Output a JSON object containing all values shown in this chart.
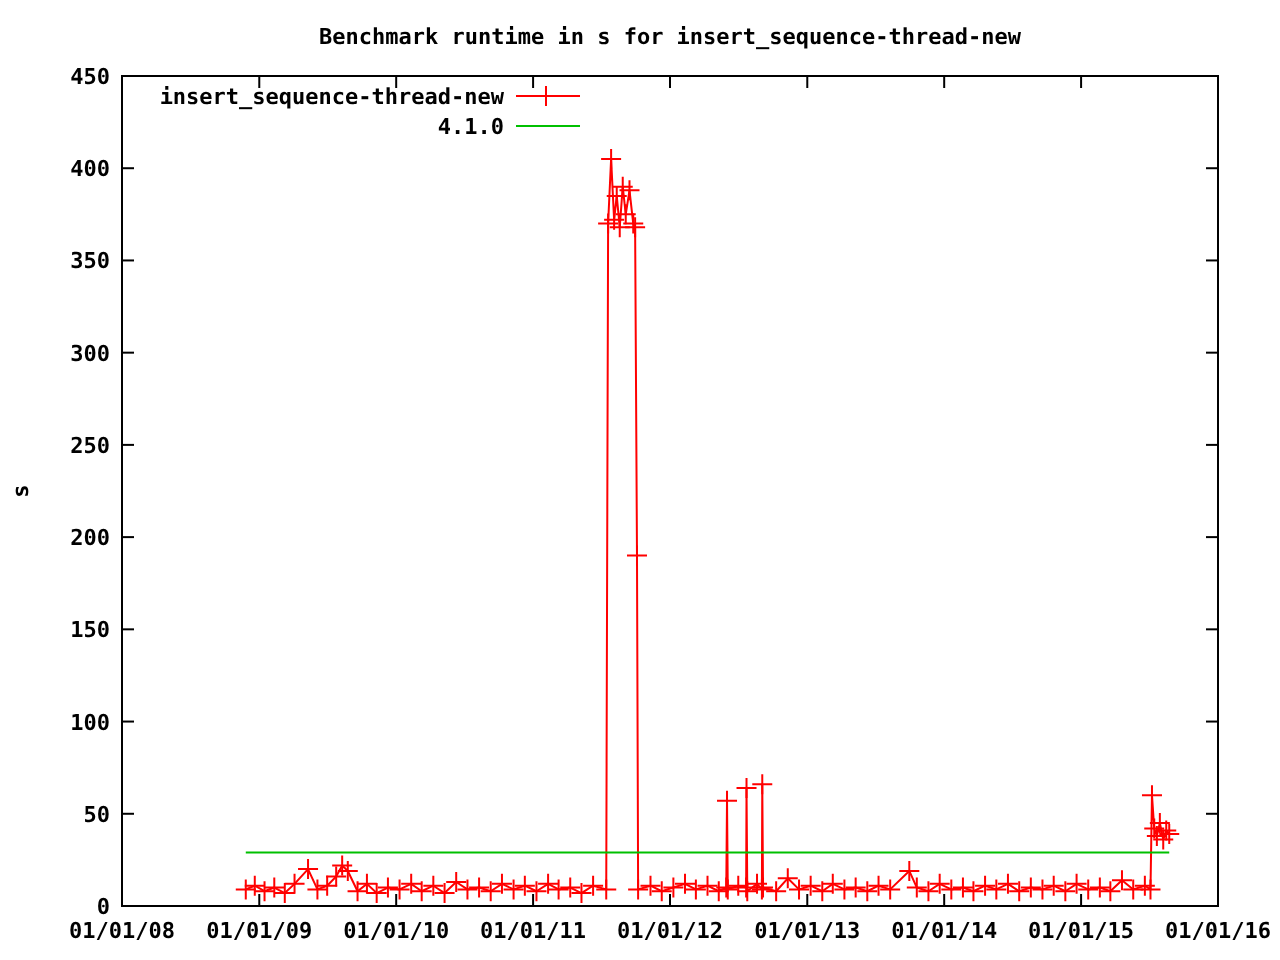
{
  "chart_data": {
    "type": "line",
    "title": "Benchmark runtime in s for insert_sequence-thread-new",
    "ylabel": "s",
    "xlim": [
      "2008-01-01",
      "2016-01-01"
    ],
    "xticks": [
      {
        "value": "2008-01-01",
        "label": "01/01/08"
      },
      {
        "value": "2009-01-01",
        "label": "01/01/09"
      },
      {
        "value": "2010-01-01",
        "label": "01/01/10"
      },
      {
        "value": "2011-01-01",
        "label": "01/01/11"
      },
      {
        "value": "2012-01-01",
        "label": "01/01/12"
      },
      {
        "value": "2013-01-01",
        "label": "01/01/13"
      },
      {
        "value": "2014-01-01",
        "label": "01/01/14"
      },
      {
        "value": "2015-01-01",
        "label": "01/01/15"
      },
      {
        "value": "2016-01-01",
        "label": "01/01/16"
      }
    ],
    "ylim": [
      0,
      450
    ],
    "yticks": [
      0,
      50,
      100,
      150,
      200,
      250,
      300,
      350,
      400,
      450
    ],
    "grid": false,
    "legend": "top left",
    "marker": "cross",
    "series": [
      {
        "name": "insert_sequence-thread-new",
        "color": "#ff0000",
        "x": [
          "2008-11-26",
          "2008-12-20",
          "2009-01-15",
          "2009-02-10",
          "2009-03-10",
          "2009-04-05",
          "2009-05-11",
          "2009-06-05",
          "2009-07-01",
          "2009-07-25",
          "2009-08-10",
          "2009-08-25",
          "2009-09-20",
          "2009-10-15",
          "2009-11-10",
          "2009-12-10",
          "2010-01-10",
          "2010-02-10",
          "2010-03-10",
          "2010-04-10",
          "2010-05-10",
          "2010-06-10",
          "2010-07-10",
          "2010-08-10",
          "2010-09-10",
          "2010-10-10",
          "2010-11-10",
          "2010-12-10",
          "2011-01-10",
          "2011-02-10",
          "2011-03-10",
          "2011-04-10",
          "2011-05-10",
          "2011-06-10",
          "2011-07-15",
          "2011-07-20",
          "2011-07-28",
          "2011-08-05",
          "2011-08-12",
          "2011-08-20",
          "2011-08-28",
          "2011-09-05",
          "2011-09-15",
          "2011-09-25",
          "2011-09-30",
          "2011-10-05",
          "2011-10-08",
          "2011-11-10",
          "2011-12-10",
          "2012-01-10",
          "2012-02-10",
          "2012-03-10",
          "2012-04-10",
          "2012-05-10",
          "2012-05-30",
          "2012-06-01",
          "2012-06-03",
          "2012-07-01",
          "2012-07-22",
          "2012-07-23",
          "2012-07-25",
          "2012-08-20",
          "2012-09-02",
          "2012-09-03",
          "2012-09-05",
          "2012-10-10",
          "2012-11-10",
          "2012-12-10",
          "2013-01-10",
          "2013-02-10",
          "2013-03-10",
          "2013-04-10",
          "2013-05-10",
          "2013-06-10",
          "2013-07-10",
          "2013-08-10",
          "2013-09-30",
          "2013-10-20",
          "2013-11-20",
          "2013-12-20",
          "2014-01-20",
          "2014-02-20",
          "2014-03-20",
          "2014-04-20",
          "2014-05-20",
          "2014-06-20",
          "2014-07-20",
          "2014-08-20",
          "2014-09-20",
          "2014-10-20",
          "2014-11-20",
          "2014-12-20",
          "2015-01-20",
          "2015-02-20",
          "2015-03-20",
          "2015-04-20",
          "2015-05-20",
          "2015-06-20",
          "2015-07-05",
          "2015-07-09",
          "2015-07-15",
          "2015-07-22",
          "2015-07-30",
          "2015-08-08",
          "2015-08-16",
          "2015-08-24"
        ],
        "values": [
          9,
          11,
          8,
          10,
          7,
          12,
          20,
          9,
          11,
          16,
          22,
          19,
          8,
          12,
          7,
          10,
          9,
          12,
          8,
          11,
          7,
          13,
          9,
          10,
          8,
          12,
          9,
          11,
          8,
          12,
          9,
          10,
          7,
          11,
          9,
          370,
          405,
          372,
          385,
          368,
          390,
          375,
          388,
          370,
          368,
          190,
          9,
          11,
          8,
          10,
          12,
          9,
          11,
          8,
          10,
          57,
          9,
          11,
          10,
          64,
          8,
          12,
          9,
          66,
          10,
          8,
          15,
          9,
          11,
          8,
          12,
          9,
          10,
          8,
          11,
          9,
          19,
          10,
          8,
          12,
          9,
          10,
          8,
          11,
          9,
          12,
          8,
          10,
          9,
          11,
          8,
          12,
          9,
          10,
          8,
          14,
          9,
          11,
          9,
          60,
          42,
          38,
          45,
          36,
          41,
          39
        ]
      },
      {
        "name": "4.1.0",
        "color": "#00c000",
        "marker": "none",
        "x": [
          "2008-11-26",
          "2015-08-24"
        ],
        "values": [
          29,
          29
        ]
      }
    ]
  }
}
